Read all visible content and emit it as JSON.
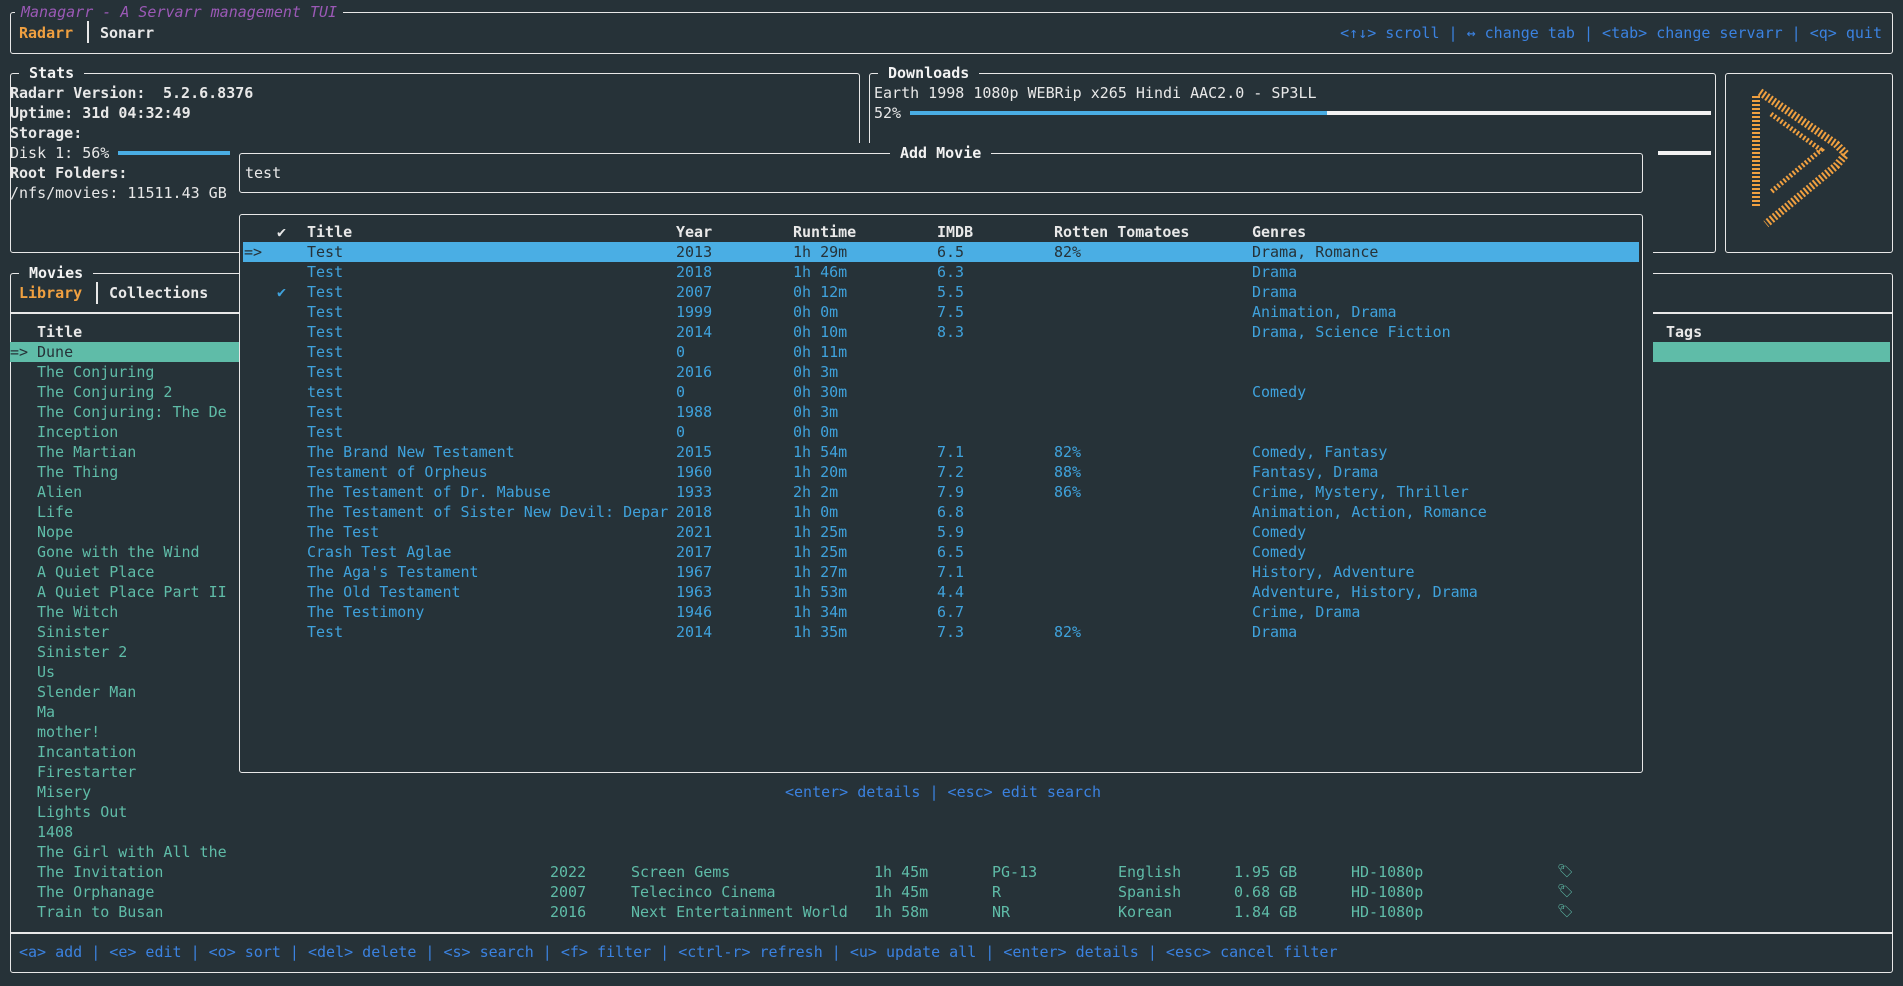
{
  "app": {
    "title": "Managarr - A Servarr management TUI",
    "tabs": [
      "Radarr",
      "Sonarr"
    ],
    "active_tab": "Radarr",
    "help": "<↑↓> scroll | ↔ change tab | <tab> change servarr | <q> quit"
  },
  "colors": {
    "background": "#263238",
    "accent_orange": "#f0a040",
    "title_purple": "#9b59b6",
    "highlight_blue": "#4aaee4",
    "highlight_teal": "#5fbca8",
    "help_blue": "#3b82e0"
  },
  "stats": {
    "title": "Stats",
    "version_label": "Radarr Version:",
    "version": "5.2.6.8376",
    "uptime": "Uptime: 31d 04:32:49",
    "storage_label": "Storage:",
    "disk": "Disk 1: 56%",
    "disk_percent": 56,
    "root_label": "Root Folders:",
    "root": "/nfs/movies: 11511.43 GB"
  },
  "downloads": {
    "title": "Downloads",
    "item": "Earth 1998 1080p WEBRip x265 Hindi AAC2.0 - SP3LL",
    "percent_label": "52%",
    "percent": 52
  },
  "logo": {
    "icon": "radarr-logo-icon"
  },
  "movies": {
    "title": "Movies",
    "tabs": [
      "Library",
      "Collections"
    ],
    "active_tab": "Library",
    "header_title": "Title",
    "header_tags": "Tags",
    "list": [
      "Dune",
      "The Conjuring",
      "The Conjuring 2",
      "The Conjuring: The De",
      "Inception",
      "The Martian",
      "The Thing",
      "Alien",
      "Life",
      "Nope",
      "Gone with the Wind",
      "A Quiet Place",
      "A Quiet Place Part II",
      "The Witch",
      "Sinister",
      "Sinister 2",
      "Us",
      "Slender Man",
      "Ma",
      "mother!",
      "Incantation",
      "Firestarter",
      "Misery",
      "Lights Out",
      "1408",
      "The Girl with All the"
    ],
    "detail_rows": [
      {
        "title": "The Invitation",
        "year": "2022",
        "studio": "Screen Gems",
        "runtime": "1h 45m",
        "rating": "PG-13",
        "language": "English",
        "size": "1.95 GB",
        "quality": "HD-1080p"
      },
      {
        "title": "The Orphanage",
        "year": "2007",
        "studio": "Telecinco Cinema",
        "runtime": "1h 45m",
        "rating": "R",
        "language": "Spanish",
        "size": "0.68 GB",
        "quality": "HD-1080p"
      },
      {
        "title": "Train to Busan",
        "year": "2016",
        "studio": "Next Entertainment World",
        "runtime": "1h 58m",
        "rating": "NR",
        "language": "Korean",
        "size": "1.84 GB",
        "quality": "HD-1080p"
      }
    ],
    "selected_marker": "=>",
    "footer_help": "<a> add | <e> edit | <o> sort | <del> delete | <s> search | <f> filter | <ctrl-r> refresh | <u> update all | <enter> details | <esc> cancel filter"
  },
  "add_movie": {
    "title": "Add Movie",
    "search_value": "test",
    "columns": [
      "✔",
      "Title",
      "Year",
      "Runtime",
      "IMDB",
      "Rotten Tomatoes",
      "Genres"
    ],
    "selected_marker": "=>",
    "results": [
      {
        "check": "",
        "title": "Test",
        "year": "2013",
        "runtime": "1h 29m",
        "imdb": "6.5",
        "rt": "82%",
        "genres": "Drama, Romance"
      },
      {
        "check": "",
        "title": "Test",
        "year": "2018",
        "runtime": "1h 46m",
        "imdb": "6.3",
        "rt": "",
        "genres": "Drama"
      },
      {
        "check": "✔",
        "title": "Test",
        "year": "2007",
        "runtime": "0h 12m",
        "imdb": "5.5",
        "rt": "",
        "genres": "Drama"
      },
      {
        "check": "",
        "title": "Test",
        "year": "1999",
        "runtime": "0h 0m",
        "imdb": "7.5",
        "rt": "",
        "genres": "Animation, Drama"
      },
      {
        "check": "",
        "title": "Test",
        "year": "2014",
        "runtime": "0h 10m",
        "imdb": "8.3",
        "rt": "",
        "genres": "Drama, Science Fiction"
      },
      {
        "check": "",
        "title": "Test",
        "year": "0",
        "runtime": "0h 11m",
        "imdb": "",
        "rt": "",
        "genres": ""
      },
      {
        "check": "",
        "title": "Test",
        "year": "2016",
        "runtime": "0h 3m",
        "imdb": "",
        "rt": "",
        "genres": ""
      },
      {
        "check": "",
        "title": "test",
        "year": "0",
        "runtime": "0h 30m",
        "imdb": "",
        "rt": "",
        "genres": "Comedy"
      },
      {
        "check": "",
        "title": "Test",
        "year": "1988",
        "runtime": "0h 3m",
        "imdb": "",
        "rt": "",
        "genres": ""
      },
      {
        "check": "",
        "title": "Test",
        "year": "0",
        "runtime": "0h 0m",
        "imdb": "",
        "rt": "",
        "genres": ""
      },
      {
        "check": "",
        "title": "The Brand New Testament",
        "year": "2015",
        "runtime": "1h 54m",
        "imdb": "7.1",
        "rt": "82%",
        "genres": "Comedy, Fantasy"
      },
      {
        "check": "",
        "title": "Testament of Orpheus",
        "year": "1960",
        "runtime": "1h 20m",
        "imdb": "7.2",
        "rt": "88%",
        "genres": "Fantasy, Drama"
      },
      {
        "check": "",
        "title": "The Testament of Dr. Mabuse",
        "year": "1933",
        "runtime": "2h 2m",
        "imdb": "7.9",
        "rt": "86%",
        "genres": "Crime, Mystery, Thriller"
      },
      {
        "check": "",
        "title": "The Testament of Sister New Devil: Depar",
        "year": "2018",
        "runtime": "1h 0m",
        "imdb": "6.8",
        "rt": "",
        "genres": "Animation, Action, Romance"
      },
      {
        "check": "",
        "title": "The Test",
        "year": "2021",
        "runtime": "1h 25m",
        "imdb": "5.9",
        "rt": "",
        "genres": "Comedy"
      },
      {
        "check": "",
        "title": "Crash Test Aglae",
        "year": "2017",
        "runtime": "1h 25m",
        "imdb": "6.5",
        "rt": "",
        "genres": "Comedy"
      },
      {
        "check": "",
        "title": "The Aga's Testament",
        "year": "1967",
        "runtime": "1h 27m",
        "imdb": "7.1",
        "rt": "",
        "genres": "History, Adventure"
      },
      {
        "check": "",
        "title": "The Old Testament",
        "year": "1963",
        "runtime": "1h 53m",
        "imdb": "4.4",
        "rt": "",
        "genres": "Adventure, History, Drama"
      },
      {
        "check": "",
        "title": "The Testimony",
        "year": "1946",
        "runtime": "1h 34m",
        "imdb": "6.7",
        "rt": "",
        "genres": "Crime, Drama"
      },
      {
        "check": "",
        "title": "Test",
        "year": "2014",
        "runtime": "1h 35m",
        "imdb": "7.3",
        "rt": "82%",
        "genres": "Drama"
      }
    ],
    "help": "<enter> details | <esc> edit search"
  }
}
